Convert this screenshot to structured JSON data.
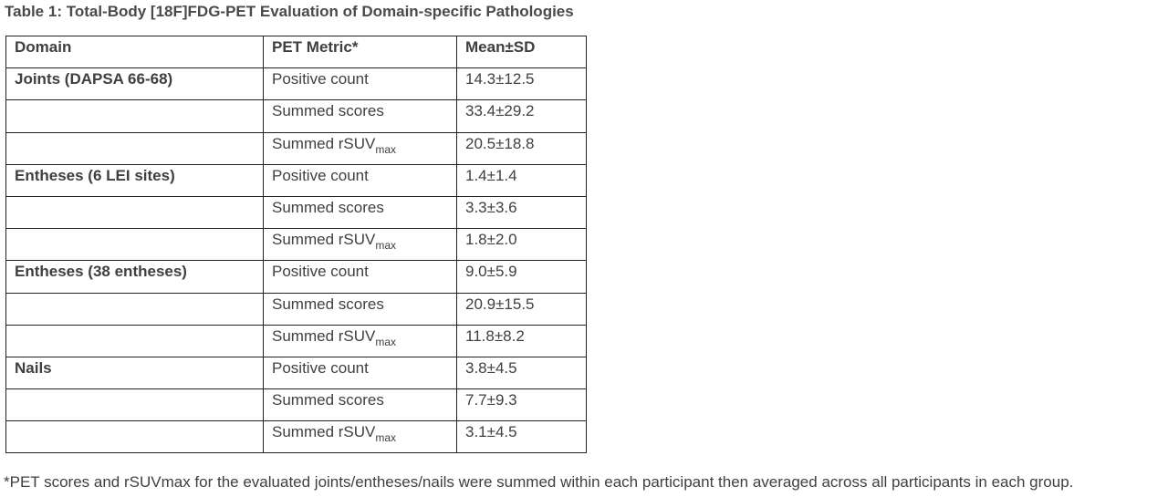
{
  "title": "Table 1: Total-Body [18F]FDG-PET Evaluation of Domain-specific Pathologies",
  "table": {
    "headers": [
      "Domain",
      "PET Metric*",
      "Mean±SD"
    ],
    "rows": [
      {
        "domain": "Joints (DAPSA 66-68)",
        "metric": "Positive count",
        "metric_sub": "",
        "value": "14.3±12.5"
      },
      {
        "domain": "",
        "metric": "Summed scores",
        "metric_sub": "",
        "value": "33.4±29.2"
      },
      {
        "domain": "",
        "metric": "Summed rSUV",
        "metric_sub": "max",
        "value": "20.5±18.8"
      },
      {
        "domain": "Entheses (6 LEI sites)",
        "metric": "Positive count",
        "metric_sub": "",
        "value": "1.4±1.4"
      },
      {
        "domain": "",
        "metric": "Summed scores",
        "metric_sub": "",
        "value": "3.3±3.6"
      },
      {
        "domain": "",
        "metric": "Summed rSUV",
        "metric_sub": "max",
        "value": "1.8±2.0"
      },
      {
        "domain": "Entheses (38 entheses)",
        "metric": "Positive count",
        "metric_sub": "",
        "value": "9.0±5.9"
      },
      {
        "domain": "",
        "metric": "Summed scores",
        "metric_sub": "",
        "value": "20.9±15.5"
      },
      {
        "domain": "",
        "metric": "Summed rSUV",
        "metric_sub": "max",
        "value": "11.8±8.2"
      },
      {
        "domain": "Nails",
        "metric": "Positive count",
        "metric_sub": "",
        "value": "3.8±4.5"
      },
      {
        "domain": "",
        "metric": "Summed scores",
        "metric_sub": "",
        "value": "7.7±9.3"
      },
      {
        "domain": "",
        "metric": "Summed rSUV",
        "metric_sub": "max",
        "value": "3.1±4.5"
      }
    ]
  },
  "footnote": "*PET scores and rSUVmax for the evaluated joints/entheses/nails were summed within each participant then averaged across all participants in each group."
}
